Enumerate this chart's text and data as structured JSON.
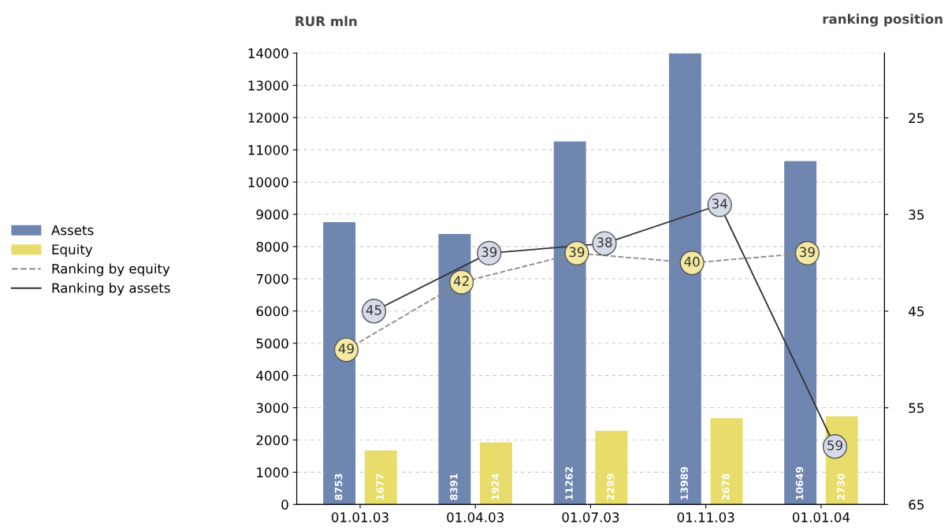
{
  "chart_data": {
    "type": "bar",
    "ylabel": "RUR mln",
    "y2label": "ranking position",
    "categories": [
      "01.01.03",
      "01.04.03",
      "01.07.03",
      "01.11.03",
      "01.01.04"
    ],
    "series": [
      {
        "name": "Assets",
        "color": "#6f86b0",
        "values": [
          8753,
          8391,
          11262,
          13989,
          10649
        ]
      },
      {
        "name": "Equity",
        "color": "#e8dc6a",
        "values": [
          1677,
          1924,
          2289,
          2678,
          2730
        ]
      },
      {
        "name": "Ranking by equity",
        "type": "line",
        "axis": "y2",
        "color": "#8a8a8a",
        "line_style": "dashed",
        "colors": [
          "#f3e9a0",
          "#f3e9a0",
          "#f3e9a0",
          "#f3e9a0",
          "#f3e9a0"
        ],
        "values": [
          49,
          42,
          39,
          40,
          39
        ]
      },
      {
        "name": "Ranking by assets",
        "type": "line",
        "axis": "y2",
        "color": "#333333",
        "line_style": "solid",
        "colors": [
          "#d6dbe8",
          "#d6dbe8",
          "#d6dbe8",
          "#d6dbe8",
          "#d6dbe8"
        ],
        "values": [
          45,
          39,
          38,
          34,
          59
        ]
      }
    ],
    "ylim": [
      0,
      14000
    ],
    "yticks": [
      0,
      1000,
      2000,
      3000,
      4000,
      5000,
      6000,
      7000,
      8000,
      9000,
      10000,
      11000,
      12000,
      13000,
      14000
    ],
    "y2lim": [
      65,
      18.3
    ],
    "y2ticks": [
      25,
      35,
      45,
      55,
      65
    ],
    "grid": "y",
    "legend": "left",
    "marker": "circle",
    "data_labels": true
  }
}
